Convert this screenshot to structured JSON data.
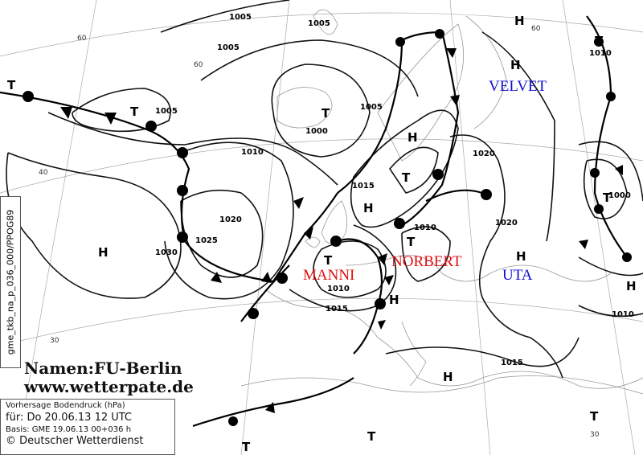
{
  "map": {
    "product_id": "gme_tkb_na_p_036_000/PPOG89",
    "credits": {
      "names": "Namen:FU-Berlin",
      "website": "www.wetterpate.de"
    },
    "info": {
      "title": "Vorhersage Bodendruck (hPa)",
      "valid": "für:  Do 20.06.13  12 UTC",
      "basis": "Basis: GME  19.06.13 00+036 h",
      "copyright": "© Deutscher Wetterdienst"
    },
    "systems": {
      "manni": {
        "name": "MANNI",
        "color": "#e01010"
      },
      "norbert": {
        "name": "NORBERT",
        "color": "#e01010"
      },
      "velvet": {
        "name": "VELVET",
        "color": "#1010d0"
      },
      "uta": {
        "name": "UTA",
        "color": "#1010d0"
      }
    },
    "pressure_centers": [
      {
        "type": "H"
      },
      {
        "type": "T"
      },
      {
        "type": "H"
      },
      {
        "type": "T"
      },
      {
        "type": "T"
      },
      {
        "type": "T"
      },
      {
        "type": "H"
      },
      {
        "type": "T"
      },
      {
        "type": "H"
      },
      {
        "type": "T"
      },
      {
        "type": "H"
      },
      {
        "type": "T"
      },
      {
        "type": "T"
      },
      {
        "type": "H"
      },
      {
        "type": "H"
      },
      {
        "type": "H"
      },
      {
        "type": "H"
      },
      {
        "type": "T"
      },
      {
        "type": "T"
      },
      {
        "type": "T"
      }
    ],
    "isobar_labels": [
      "1005",
      "1005",
      "1005",
      "1005",
      "1005",
      "1000",
      "1010",
      "1015",
      "1020",
      "1000",
      "1020",
      "1025",
      "1030",
      "1010",
      "1020",
      "1010",
      "1015",
      "1010",
      "1015",
      "1010"
    ],
    "latitude_labels": [
      "60",
      "60",
      "60",
      "40",
      "30",
      "30"
    ]
  }
}
